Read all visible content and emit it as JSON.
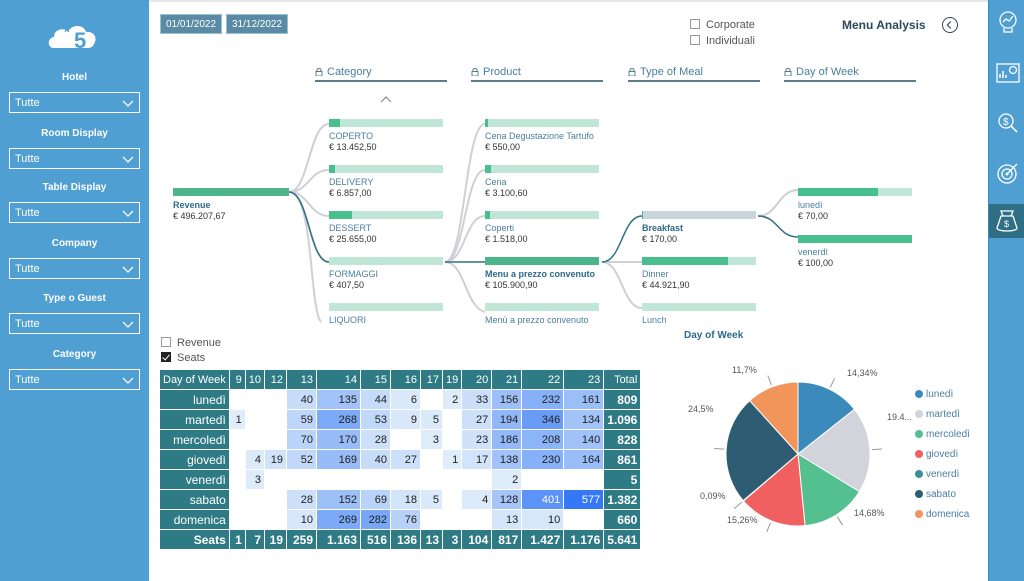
{
  "sidebar": {
    "filters": [
      {
        "label": "Hotel",
        "value": "Tutte"
      },
      {
        "label": "Room Display",
        "value": "Tutte"
      },
      {
        "label": "Table Display",
        "value": "Tutte"
      },
      {
        "label": "Company",
        "value": "Tutte"
      },
      {
        "label": "Type o Guest",
        "value": "Tutte"
      },
      {
        "label": "Category",
        "value": "Tutte"
      }
    ]
  },
  "dates": {
    "start": "01/01/2022",
    "end": "31/12/2022"
  },
  "guest_types": [
    {
      "label": "Corporate",
      "checked": false
    },
    {
      "label": "Individuali",
      "checked": false
    }
  ],
  "title": "Menu Analysis",
  "tree": {
    "levels": [
      "Category",
      "Product",
      "Type of Meal",
      "Day of Week"
    ],
    "root": {
      "label": "Revenue",
      "value": "€ 496.207,67"
    },
    "category": [
      {
        "label": "COPERTO",
        "value": "€ 13.452,50",
        "fill": 0.1
      },
      {
        "label": "DELIVERY",
        "value": "€ 6.857,00",
        "fill": 0.05
      },
      {
        "label": "DESSERT",
        "value": "€ 25.655,00",
        "fill": 0.2
      },
      {
        "label": "FORMAGGI",
        "value": "€ 407,50",
        "fill": 0.0
      },
      {
        "label": "LIQUORI",
        "value": "",
        "fill": 0.0
      }
    ],
    "product": [
      {
        "label": "Cena Degustazione Tartufo",
        "value": "€ 550,00",
        "fill": 0.03
      },
      {
        "label": "Cena",
        "value": "€ 3.100,60",
        "fill": 0.05
      },
      {
        "label": "Coperti",
        "value": "€ 1.518,00",
        "fill": 0.04
      },
      {
        "label": "Menu a prezzo convenuto",
        "value": "€ 105.900,90",
        "fill": 1.0,
        "bold": true
      },
      {
        "label": "Menù a prezzo convenuto",
        "value": "",
        "fill": 0.0
      }
    ],
    "meal": [
      {
        "label": "Breakfast",
        "value": "€ 170,00",
        "fill": 0.01,
        "bold": true
      },
      {
        "label": "Dinner",
        "value": "€ 44.921,90",
        "fill": 0.75
      },
      {
        "label": "Lunch",
        "value": "",
        "fill": 0.0
      }
    ],
    "day": [
      {
        "label": "lunedì",
        "value": "€ 70,00",
        "fill": 0.7
      },
      {
        "label": "venerdì",
        "value": "€ 100,00",
        "fill": 1.0
      }
    ]
  },
  "measures": [
    {
      "label": "Revenue",
      "checked": false
    },
    {
      "label": "Seats",
      "checked": true
    }
  ],
  "table": {
    "header_first": "Day of Week",
    "columns": [
      "9",
      "10",
      "12",
      "13",
      "14",
      "15",
      "16",
      "17",
      "19",
      "20",
      "21",
      "22",
      "23"
    ],
    "header_total": "Total",
    "rows": [
      {
        "day": "lunedì",
        "cells": [
          "",
          "",
          "",
          "40",
          "135",
          "44",
          "6",
          "",
          "2",
          "33",
          "156",
          "232",
          "161"
        ],
        "total": "809"
      },
      {
        "day": "martedì",
        "cells": [
          "1",
          "",
          "",
          "59",
          "268",
          "53",
          "9",
          "5",
          "",
          "27",
          "194",
          "346",
          "134"
        ],
        "total": "1.096"
      },
      {
        "day": "mercoledì",
        "cells": [
          "",
          "",
          "",
          "70",
          "170",
          "28",
          "",
          "3",
          "",
          "23",
          "186",
          "208",
          "140"
        ],
        "total": "828"
      },
      {
        "day": "giovedì",
        "cells": [
          "",
          "4",
          "19",
          "52",
          "169",
          "40",
          "27",
          "",
          "1",
          "17",
          "138",
          "230",
          "164"
        ],
        "total": "861"
      },
      {
        "day": "venerdì",
        "cells": [
          "",
          "3",
          "",
          "",
          "",
          "",
          "",
          "",
          "",
          "",
          "2",
          "",
          ""
        ],
        "total": "5"
      },
      {
        "day": "sabato",
        "cells": [
          "",
          "",
          "",
          "28",
          "152",
          "69",
          "18",
          "5",
          "",
          "4",
          "128",
          "401",
          "577"
        ],
        "total": "1.382"
      },
      {
        "day": "domenica",
        "cells": [
          "",
          "",
          "",
          "10",
          "269",
          "282",
          "76",
          "",
          "",
          "",
          "13",
          "10",
          ""
        ],
        "total": "660"
      }
    ],
    "total_label": "Seats",
    "totals": [
      "1",
      "7",
      "19",
      "259",
      "1.163",
      "516",
      "136",
      "13",
      "3",
      "104",
      "817",
      "1.427",
      "1.176"
    ],
    "grand_total": "5.641"
  },
  "chart_data": {
    "type": "pie",
    "title": "Day of Week",
    "labels": [
      "lunedì",
      "martedì",
      "mercoledì",
      "giovedì",
      "venerdì",
      "sabato",
      "domenica"
    ],
    "values": [
      14.34,
      19.4,
      14.68,
      15.26,
      0.09,
      24.5,
      11.7
    ],
    "value_labels": [
      "14,34%",
      "19.4...",
      "14,68%",
      "15,26%",
      "0,09%",
      "24,5%",
      "11,7%"
    ],
    "colors": [
      "#3a8bbb",
      "#d3d3dc",
      "#55c08f",
      "#f06060",
      "#3c8f9a",
      "#2d5c73",
      "#f2955a"
    ],
    "legend": "right"
  }
}
